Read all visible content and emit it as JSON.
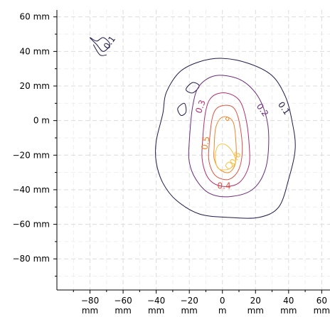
{
  "chart_data": {
    "type": "contour",
    "title": "",
    "xlabel": "",
    "ylabel": "",
    "xlim": [
      -100,
      65
    ],
    "ylim": [
      -98,
      64
    ],
    "grid": true,
    "x_ticks": [
      {
        "value": -80,
        "line1": "−80",
        "line2": "mm"
      },
      {
        "value": -60,
        "line1": "−60",
        "line2": "mm"
      },
      {
        "value": -40,
        "line1": "−40",
        "line2": "mm"
      },
      {
        "value": -20,
        "line1": "−20",
        "line2": "mm"
      },
      {
        "value": 0,
        "line1": "0",
        "line2": "m"
      },
      {
        "value": 20,
        "line1": "20",
        "line2": "mm"
      },
      {
        "value": 40,
        "line1": "40",
        "line2": "mm"
      },
      {
        "value": 60,
        "line1": "60",
        "line2": "mm"
      }
    ],
    "y_ticks": [
      {
        "value": 60,
        "label": "60 mm"
      },
      {
        "value": 40,
        "label": "40 mm"
      },
      {
        "value": 20,
        "label": "20 mm"
      },
      {
        "value": 0,
        "label": "0 m"
      },
      {
        "value": -20,
        "label": "−20 mm"
      },
      {
        "value": -40,
        "label": "−40 mm"
      },
      {
        "value": -60,
        "label": "−60 mm"
      },
      {
        "value": -80,
        "label": "−80 mm"
      }
    ],
    "levels": [
      {
        "level": 0.1,
        "color": "#1f1a4a",
        "label": "0.1",
        "contours": [
          [
            [
              -40,
              -12
            ],
            [
              -36,
              4
            ],
            [
              -34,
              16
            ],
            [
              -26,
              28
            ],
            [
              -14,
              34
            ],
            [
              0,
              36
            ],
            [
              16,
              33
            ],
            [
              30,
              26
            ],
            [
              38,
              14
            ],
            [
              42,
              0
            ],
            [
              44,
              -16
            ],
            [
              40,
              -34
            ],
            [
              34,
              -50
            ],
            [
              22,
              -56
            ],
            [
              4,
              -56
            ],
            [
              -14,
              -54
            ],
            [
              -28,
              -46
            ],
            [
              -36,
              -36
            ],
            [
              -40,
              -24
            ]
          ],
          [
            [
              -80,
              48
            ],
            [
              -76,
              46
            ],
            [
              -72,
              48
            ],
            [
              -68,
              44
            ],
            [
              -72,
              40
            ],
            [
              -76,
              44
            ]
          ],
          [
            [
              -78,
              44
            ],
            [
              -74,
              38
            ],
            [
              -70,
              38
            ]
          ],
          [
            [
              -27,
              7
            ],
            [
              -23,
              10
            ],
            [
              -22,
              5
            ],
            [
              -25,
              3
            ]
          ],
          [
            [
              -22,
              18
            ],
            [
              -18,
              22
            ],
            [
              -14,
              20
            ],
            [
              -18,
              16
            ]
          ]
        ],
        "label_positions": [
          {
            "x": -68,
            "y": 45,
            "angle": -55
          },
          {
            "x": 37,
            "y": 7,
            "angle": 55
          }
        ]
      },
      {
        "level": 0.2,
        "color": "#6a2c7d",
        "label": "0.2",
        "contours": [
          [
            [
              -20,
              -12
            ],
            [
              -18,
              8
            ],
            [
              -14,
              20
            ],
            [
              -4,
              26
            ],
            [
              10,
              24
            ],
            [
              20,
              16
            ],
            [
              26,
              4
            ],
            [
              28,
              -10
            ],
            [
              26,
              -28
            ],
            [
              18,
              -40
            ],
            [
              4,
              -44
            ],
            [
              -8,
              -42
            ],
            [
              -16,
              -34
            ],
            [
              -20,
              -24
            ]
          ]
        ],
        "label_positions": [
          {
            "x": 24,
            "y": 6,
            "angle": 55
          }
        ]
      },
      {
        "level": 0.3,
        "color": "#b0306e",
        "label": "0.3",
        "contours": [
          [
            [
              -12,
              -12
            ],
            [
              -10,
              6
            ],
            [
              -6,
              14
            ],
            [
              2,
              16
            ],
            [
              10,
              12
            ],
            [
              14,
              2
            ],
            [
              16,
              -12
            ],
            [
              16,
              -26
            ],
            [
              10,
              -36
            ],
            [
              0,
              -38
            ],
            [
              -8,
              -34
            ],
            [
              -12,
              -24
            ]
          ]
        ],
        "label_positions": [
          {
            "x": -13,
            "y": 8,
            "angle": -70
          }
        ]
      },
      {
        "level": 0.4,
        "color": "#de5443",
        "label": "0.4",
        "contours": [
          [
            [
              -8,
              -14
            ],
            [
              -6,
              2
            ],
            [
              -2,
              8
            ],
            [
              6,
              8
            ],
            [
              10,
              0
            ],
            [
              12,
              -16
            ],
            [
              10,
              -28
            ],
            [
              4,
              -34
            ],
            [
              -4,
              -32
            ],
            [
              -8,
              -24
            ]
          ]
        ],
        "label_positions": [
          {
            "x": 1,
            "y": -38,
            "angle": 0
          }
        ]
      },
      {
        "level": 0.5,
        "color": "#f0862a",
        "label": "0.5",
        "contours": [
          [
            [
              -5,
              -16
            ],
            [
              -4,
              -4
            ],
            [
              0,
              2
            ],
            [
              6,
              0
            ],
            [
              8,
              -10
            ],
            [
              8,
              -24
            ],
            [
              4,
              -30
            ],
            [
              -2,
              -28
            ],
            [
              -5,
              -22
            ]
          ],
          [
            [
              2,
              1
            ],
            [
              3,
              2
            ],
            [
              4,
              1
            ],
            [
              3,
              0
            ]
          ]
        ],
        "label_positions": [
          {
            "x": -10,
            "y": -13,
            "angle": -80
          }
        ]
      },
      {
        "level": 0.6,
        "color": "#f6c340",
        "label": "0.6",
        "contours": [
          [
            [
              -4,
              -18
            ],
            [
              -2,
              -14
            ],
            [
              2,
              -14
            ],
            [
              6,
              -18
            ],
            [
              8,
              -24
            ],
            [
              4,
              -28
            ],
            [
              -2,
              -28
            ],
            [
              -4,
              -24
            ]
          ],
          [
            [
              2,
              -26
            ],
            [
              4,
              -24
            ],
            [
              6,
              -26
            ],
            [
              4,
              -28
            ]
          ]
        ],
        "label_positions": [
          {
            "x": 8,
            "y": -22,
            "angle": -60
          }
        ]
      }
    ]
  }
}
